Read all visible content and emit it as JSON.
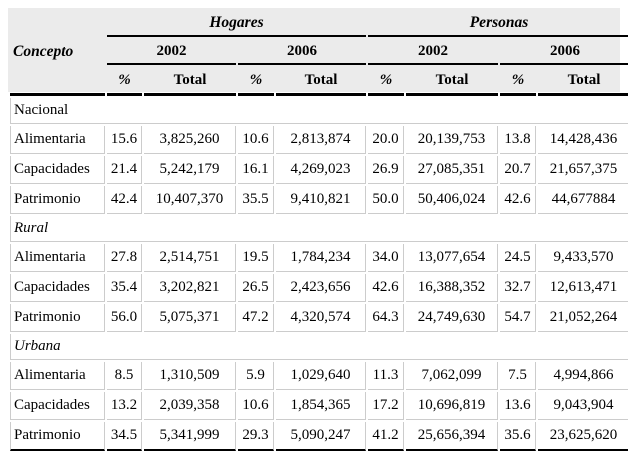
{
  "table": {
    "concepto_label": "Concepto",
    "groups": [
      {
        "label": "Hogares"
      },
      {
        "label": "Personas"
      }
    ],
    "years": [
      "2002",
      "2006",
      "2002",
      "2006"
    ],
    "subheaders": [
      "%",
      "Total",
      "%",
      "Total",
      "%",
      "Total",
      "%",
      "Total"
    ],
    "sections": [
      {
        "name": "Nacional",
        "italic": false,
        "rows": [
          {
            "concepto": "Alimentaria",
            "values": [
              "15.6",
              "3,825,260",
              "10.6",
              "2,813,874",
              "20.0",
              "20,139,753",
              "13.8",
              "14,428,436"
            ]
          },
          {
            "concepto": "Capacidades",
            "values": [
              "21.4",
              "5,242,179",
              "16.1",
              "4,269,023",
              "26.9",
              "27,085,351",
              "20.7",
              "21,657,375"
            ]
          },
          {
            "concepto": "Patrimonio",
            "values": [
              "42.4",
              "10,407,370",
              "35.5",
              "9,410,821",
              "50.0",
              "50,406,024",
              "42.6",
              "44,677884"
            ]
          }
        ]
      },
      {
        "name": "Rural",
        "italic": true,
        "rows": [
          {
            "concepto": "Alimentaria",
            "values": [
              "27.8",
              "2,514,751",
              "19.5",
              "1,784,234",
              "34.0",
              "13,077,654",
              "24.5",
              "9,433,570"
            ]
          },
          {
            "concepto": "Capacidades",
            "values": [
              "35.4",
              "3,202,821",
              "26.5",
              "2,423,656",
              "42.6",
              "16,388,352",
              "32.7",
              "12,613,471"
            ]
          },
          {
            "concepto": "Patrimonio",
            "values": [
              "56.0",
              "5,075,371",
              "47.2",
              "4,320,574",
              "64.3",
              "24,749,630",
              "54.7",
              "21,052,264"
            ]
          }
        ]
      },
      {
        "name": "Urbana",
        "italic": true,
        "rows": [
          {
            "concepto": "Alimentaria",
            "values": [
              "8.5",
              "1,310,509",
              "5.9",
              "1,029,640",
              "11.3",
              "7,062,099",
              "7.5",
              "4,994,866"
            ]
          },
          {
            "concepto": "Capacidades",
            "values": [
              "13.2",
              "2,039,358",
              "10.6",
              "1,854,365",
              "17.2",
              "10,696,819",
              "13.6",
              "9,043,904"
            ]
          },
          {
            "concepto": "Patrimonio",
            "values": [
              "34.5",
              "5,341,999",
              "29.3",
              "5,090,247",
              "41.2",
              "25,656,394",
              "35.6",
              "23,625,620"
            ]
          }
        ]
      }
    ],
    "colors": {
      "header_bg": "#ebebeb",
      "grid_line": "#cccccc",
      "rule_line": "#000000"
    }
  }
}
